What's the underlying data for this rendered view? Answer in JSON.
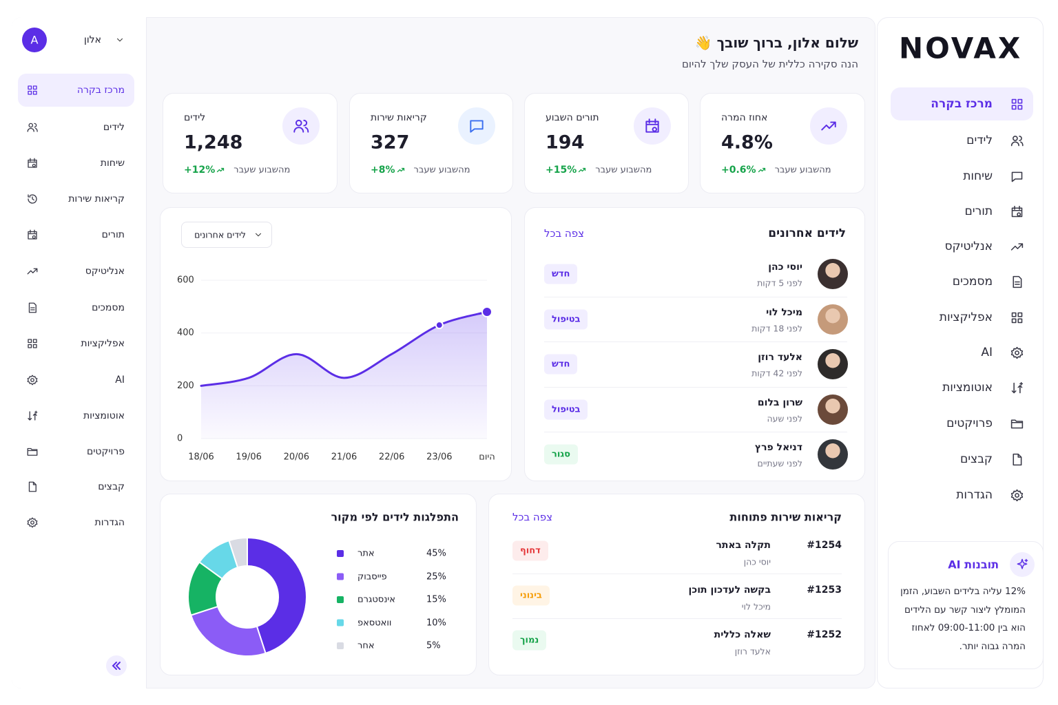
{
  "left_sidebar": {
    "user_name": "אלון",
    "avatar": "A",
    "nav": [
      "מרכז בקרה",
      "לידים",
      "שיחות",
      "קריאות שירות",
      "תורים",
      "אנליטיקס",
      "מסמכים",
      "אפליקציות",
      "AI",
      "אוטומציות",
      "פרויקטים",
      "קבצים",
      "הגדרות"
    ]
  },
  "right_sidebar": {
    "logo": "NOVAX",
    "nav": [
      "מרכז בקרה",
      "לידים",
      "שיחות",
      "תורים",
      "אנליטיקס",
      "מסמכים",
      "אפליקציות",
      "AI",
      "אוטומציות",
      "פרויקטים",
      "קבצים",
      "הגדרות"
    ],
    "insight": {
      "title": "תובנות AI",
      "text": "12% עליה בלידים השבוע, הזמן המומלץ ליצור קשר עם הלידים הוא בין 09:00-11:00 לאחוז המרה גבוה יותר."
    }
  },
  "header": {
    "title": "שלום אלון, ברוך שובך 👋",
    "subtitle": "הנה סקירה כללית של העסק שלך להיום"
  },
  "stats": [
    {
      "label": "אחוז המרה",
      "value": "4.8%",
      "change": "+0.6%",
      "period": "מהשבוע שעבר"
    },
    {
      "label": "תורים השבוע",
      "value": "194",
      "change": "+15%",
      "period": "מהשבוע שעבר"
    },
    {
      "label": "קריאות שירות",
      "value": "327",
      "change": "+8%",
      "period": "מהשבוע שעבר"
    },
    {
      "label": "לידים",
      "value": "1,248",
      "change": "+12%",
      "period": "מהשבוע שעבר"
    }
  ],
  "recent_leads": {
    "title": "לידים אחרונים",
    "view_all": "צפה בכל",
    "items": [
      {
        "name": "יוסי כהן",
        "time": "לפני 5 דקות",
        "status": "חדש"
      },
      {
        "name": "מיכל לוי",
        "time": "לפני 18 דקות",
        "status": "בטיפול"
      },
      {
        "name": "אלעד רוזן",
        "time": "לפני 42 דקות",
        "status": "חדש"
      },
      {
        "name": "שרון בלום",
        "time": "לפני שעה",
        "status": "בטיפול"
      },
      {
        "name": "דניאל פרץ",
        "time": "לפני שעתיים",
        "status": "סגור"
      }
    ]
  },
  "service_calls": {
    "title": "קריאות שירות פתוחות",
    "view_all": "צפה בכל",
    "items": [
      {
        "id": "#1254",
        "subject": "תקלה באתר",
        "person": "יוסי כהן",
        "priority": "דחוף"
      },
      {
        "id": "#1253",
        "subject": "בקשה לעדכון תוכן",
        "person": "מיכל לוי",
        "priority": "בינוני"
      },
      {
        "id": "#1252",
        "subject": "שאלה כללית",
        "person": "אלעד רוזן",
        "priority": "נמוך"
      }
    ]
  },
  "chart_data": [
    {
      "type": "line",
      "dropdown": "לידים אחרונים",
      "categories": [
        "18/06",
        "19/06",
        "20/06",
        "21/06",
        "22/06",
        "23/06",
        "היום"
      ],
      "values": [
        200,
        230,
        320,
        230,
        320,
        430,
        480
      ],
      "color": "#5b2ee6",
      "ylim": [
        0,
        600
      ],
      "yticks": [
        0,
        200,
        400,
        600
      ],
      "grid": true
    },
    {
      "type": "pie",
      "title": "התפלגות לידים לפי מקור",
      "categories": [
        "אתר",
        "פייסבוק",
        "אינסטגרם",
        "וואטסאפ",
        "אחר"
      ],
      "values": [
        45,
        25,
        15,
        10,
        5
      ],
      "value_labels": [
        "45%",
        "25%",
        "15%",
        "10%",
        "5%"
      ],
      "colors": [
        "#5b2ee6",
        "#8b5cf6",
        "#16b364",
        "#67d8e8",
        "#d9dbe3"
      ]
    }
  ]
}
